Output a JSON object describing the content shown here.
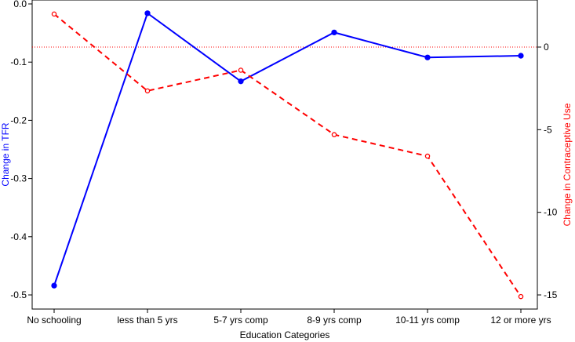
{
  "chart_data": {
    "type": "line",
    "title": "",
    "xlabel": "Education Categories",
    "categories": [
      "No schooling",
      "less than 5 yrs",
      "5-7 yrs comp",
      "8-9 yrs comp",
      "10-11 yrs comp",
      "12 or more yrs"
    ],
    "y_left": {
      "label": "Change in TFR",
      "ylim": [
        -0.5,
        0.0
      ],
      "ticks": [
        "0.0",
        "-0.1",
        "-0.2",
        "-0.3",
        "-0.4",
        "-0.5"
      ],
      "tick_values": [
        0.0,
        -0.1,
        -0.2,
        -0.3,
        -0.4,
        -0.5
      ],
      "color": "#0000FF"
    },
    "y_right": {
      "label": "Change in Contraceptive Use",
      "ylim": [
        -15.5,
        2.4
      ],
      "ticks": [
        "0",
        "-5",
        "-10",
        "-15"
      ],
      "tick_values": [
        0,
        -5,
        -10,
        -15
      ],
      "color": "#FF0000"
    },
    "series": [
      {
        "axis": "left",
        "color": "#0000FF",
        "style": "solid",
        "marker": "filled-circle",
        "values": [
          -0.484,
          -0.016,
          -0.133,
          -0.049,
          -0.092,
          -0.089
        ]
      },
      {
        "axis": "right",
        "color": "#FF0000",
        "style": "dashed",
        "marker": "open-circle",
        "values": [
          2.0,
          -2.65,
          -1.4,
          -5.3,
          -6.6,
          -15.1
        ]
      }
    ],
    "reference_line": {
      "axis": "right",
      "value": 0,
      "color": "#FF0000",
      "style": "dotted"
    },
    "grid": false,
    "legend": "none"
  }
}
